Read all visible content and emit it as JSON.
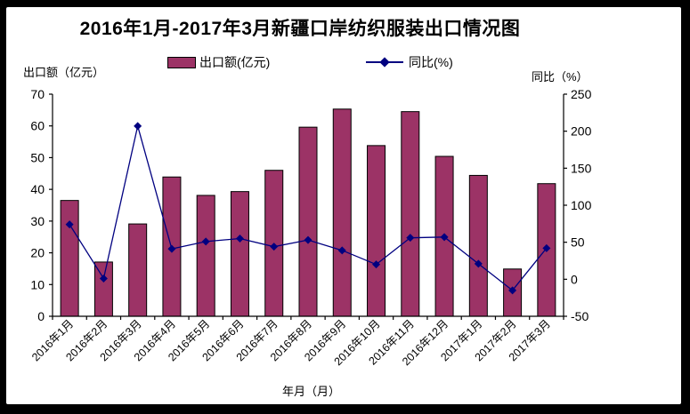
{
  "title": "2016年1月-2017年3月新疆口岸纺织服装出口情况图",
  "legend": {
    "bar_label": "出口额(亿元)",
    "line_label": "同比(%)"
  },
  "axes": {
    "left_title": "出口额（亿元）",
    "right_title": "同比（%）",
    "x_title": "年月（月）",
    "left_ticks": [
      0,
      10,
      20,
      30,
      40,
      50,
      60,
      70
    ],
    "right_ticks": [
      -50,
      0,
      50,
      100,
      150,
      200,
      250
    ]
  },
  "colors": {
    "bar_fill": "#9C3366",
    "bar_stroke": "#000000",
    "line": "#000080",
    "axis": "#000000",
    "frame": "#000000",
    "panel_bg": "#FFFFFF"
  },
  "chart_data": {
    "type": "bar",
    "subtype": "bar+line combo, dual y-axis",
    "title": "2016年1月-2017年3月新疆口岸纺织服装出口情况图",
    "xlabel": "年月（月）",
    "ylabel_left": "出口额（亿元）",
    "ylabel_right": "同比（%）",
    "left_ylim": [
      0,
      70
    ],
    "right_ylim": [
      -50,
      250
    ],
    "grid": false,
    "legend_position": "top",
    "categories": [
      "2016年1月",
      "2016年2月",
      "2016年3月",
      "2016年4月",
      "2016年5月",
      "2016年6月",
      "2016年7月",
      "2016年8月",
      "2016年9月",
      "2016年10月",
      "2016年11月",
      "2016年12月",
      "2017年1月",
      "2017年2月",
      "2017年3月"
    ],
    "series": [
      {
        "name": "出口额(亿元)",
        "type": "bar",
        "axis": "left",
        "values": [
          36.5,
          17.1,
          29.1,
          43.9,
          38.1,
          39.3,
          46.0,
          59.6,
          65.3,
          53.8,
          64.5,
          50.4,
          44.4,
          14.9,
          41.8
        ]
      },
      {
        "name": "同比(%)",
        "type": "line",
        "axis": "right",
        "marker": "diamond",
        "values": [
          74,
          1,
          207,
          41,
          51,
          55,
          44,
          53,
          39,
          20,
          56,
          57,
          21,
          -15,
          42
        ]
      }
    ]
  }
}
